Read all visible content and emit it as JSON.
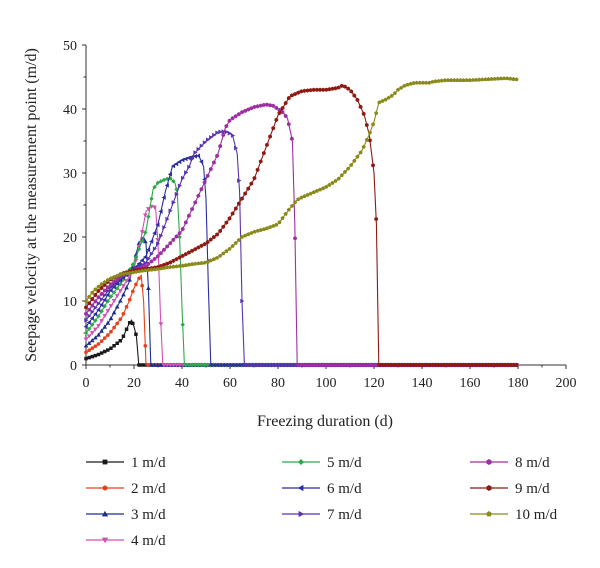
{
  "chart_data": {
    "type": "line",
    "title": "",
    "xlabel": "Freezing duration (d)",
    "ylabel": "Seepage velocity at the measurement point (m/d)",
    "xlim": [
      0,
      200
    ],
    "ylim": [
      0,
      50
    ],
    "xticks": [
      0,
      20,
      40,
      60,
      80,
      100,
      120,
      140,
      160,
      180,
      200
    ],
    "yticks": [
      0,
      10,
      20,
      30,
      40,
      50
    ],
    "grid": false,
    "legend_placement": "bottom",
    "x_end": 180,
    "series": [
      {
        "name": "1 m/d",
        "color": "#1a1a1a",
        "marker": "square",
        "points": [
          [
            0,
            1
          ],
          [
            5,
            1.6
          ],
          [
            10,
            2.5
          ],
          [
            15,
            4
          ],
          [
            18,
            6.5
          ],
          [
            19,
            7
          ],
          [
            20,
            6
          ],
          [
            21,
            4.5
          ],
          [
            22,
            0
          ],
          [
            180,
            0
          ]
        ]
      },
      {
        "name": "2 m/d",
        "color": "#e8401c",
        "marker": "circle",
        "points": [
          [
            0,
            2
          ],
          [
            5,
            3.2
          ],
          [
            10,
            5
          ],
          [
            15,
            7.5
          ],
          [
            18,
            10
          ],
          [
            20,
            12
          ],
          [
            22,
            13.5
          ],
          [
            23,
            14
          ],
          [
            24,
            10
          ],
          [
            25,
            0
          ],
          [
            180,
            0
          ]
        ]
      },
      {
        "name": "3 m/d",
        "color": "#1d2f8e",
        "marker": "triangle-up",
        "points": [
          [
            0,
            3
          ],
          [
            5,
            4.6
          ],
          [
            10,
            7
          ],
          [
            15,
            10.5
          ],
          [
            18,
            13
          ],
          [
            20,
            16
          ],
          [
            22,
            19
          ],
          [
            24,
            20
          ],
          [
            25,
            19
          ],
          [
            26,
            12
          ],
          [
            27,
            0
          ],
          [
            180,
            0
          ]
        ]
      },
      {
        "name": "4 m/d",
        "color": "#d44fb4",
        "marker": "triangle-down",
        "points": [
          [
            0,
            4
          ],
          [
            5,
            6
          ],
          [
            10,
            9
          ],
          [
            15,
            12
          ],
          [
            20,
            15
          ],
          [
            23,
            20
          ],
          [
            25,
            24
          ],
          [
            27,
            24.8
          ],
          [
            29,
            24.6
          ],
          [
            30,
            19
          ],
          [
            31,
            8
          ],
          [
            32,
            0
          ],
          [
            180,
            0
          ]
        ]
      },
      {
        "name": "5 m/d",
        "color": "#2ea84a",
        "marker": "diamond",
        "points": [
          [
            0,
            5
          ],
          [
            5,
            7.5
          ],
          [
            10,
            10.5
          ],
          [
            15,
            13
          ],
          [
            20,
            16
          ],
          [
            25,
            21
          ],
          [
            28,
            27.5
          ],
          [
            30,
            28.5
          ],
          [
            33,
            29
          ],
          [
            35,
            29.2
          ],
          [
            37,
            28.5
          ],
          [
            38,
            27
          ],
          [
            39,
            20
          ],
          [
            40,
            9
          ],
          [
            41,
            0
          ],
          [
            180,
            0
          ]
        ]
      },
      {
        "name": "6 m/d",
        "color": "#2a2f9e",
        "marker": "triangle-left",
        "points": [
          [
            0,
            6
          ],
          [
            5,
            8.5
          ],
          [
            10,
            11.5
          ],
          [
            15,
            13.5
          ],
          [
            20,
            15
          ],
          [
            25,
            17
          ],
          [
            30,
            22
          ],
          [
            33,
            27
          ],
          [
            36,
            31
          ],
          [
            40,
            32
          ],
          [
            44,
            32.5
          ],
          [
            47,
            32.7
          ],
          [
            49,
            31
          ],
          [
            50,
            26
          ],
          [
            51,
            12
          ],
          [
            52,
            0
          ],
          [
            180,
            0
          ]
        ]
      },
      {
        "name": "7 m/d",
        "color": "#5a33b0",
        "marker": "triangle-right",
        "points": [
          [
            0,
            7
          ],
          [
            5,
            9.5
          ],
          [
            10,
            12
          ],
          [
            15,
            13.8
          ],
          [
            20,
            15
          ],
          [
            25,
            16
          ],
          [
            30,
            19
          ],
          [
            35,
            24
          ],
          [
            40,
            29
          ],
          [
            43,
            31
          ],
          [
            45,
            33
          ],
          [
            50,
            35
          ],
          [
            55,
            36.4
          ],
          [
            58,
            36.5
          ],
          [
            61,
            36
          ],
          [
            63,
            33
          ],
          [
            64,
            27
          ],
          [
            65,
            10
          ],
          [
            66,
            0
          ],
          [
            180,
            0
          ]
        ]
      },
      {
        "name": "8 m/d",
        "color": "#9d2fa2",
        "marker": "hexagon",
        "points": [
          [
            0,
            8
          ],
          [
            5,
            10.5
          ],
          [
            10,
            12.5
          ],
          [
            15,
            14
          ],
          [
            20,
            14.8
          ],
          [
            25,
            15.5
          ],
          [
            30,
            17
          ],
          [
            35,
            19
          ],
          [
            40,
            21
          ],
          [
            45,
            25
          ],
          [
            50,
            29
          ],
          [
            55,
            33
          ],
          [
            58,
            37
          ],
          [
            60,
            38.3
          ],
          [
            65,
            39.5
          ],
          [
            70,
            40.3
          ],
          [
            75,
            40.7
          ],
          [
            78,
            40.5
          ],
          [
            82,
            39.5
          ],
          [
            84,
            38.5
          ],
          [
            86,
            35
          ],
          [
            87,
            22
          ],
          [
            88,
            0
          ],
          [
            180,
            0
          ]
        ]
      },
      {
        "name": "9 m/d",
        "color": "#8e1a12",
        "marker": "hexagon",
        "points": [
          [
            0,
            9
          ],
          [
            5,
            11.5
          ],
          [
            10,
            13.3
          ],
          [
            15,
            14.3
          ],
          [
            20,
            14.8
          ],
          [
            25,
            15
          ],
          [
            30,
            15.3
          ],
          [
            35,
            16
          ],
          [
            40,
            17
          ],
          [
            45,
            18
          ],
          [
            50,
            19
          ],
          [
            55,
            20.5
          ],
          [
            60,
            23
          ],
          [
            65,
            26
          ],
          [
            70,
            29
          ],
          [
            75,
            34
          ],
          [
            80,
            39
          ],
          [
            85,
            42
          ],
          [
            90,
            42.8
          ],
          [
            95,
            43
          ],
          [
            100,
            43
          ],
          [
            105,
            43.3
          ],
          [
            107,
            43.7
          ],
          [
            110,
            43
          ],
          [
            113,
            41.5
          ],
          [
            116,
            39
          ],
          [
            118,
            36
          ],
          [
            120,
            30
          ],
          [
            121,
            22
          ],
          [
            122,
            0
          ],
          [
            180,
            0
          ]
        ]
      },
      {
        "name": "10 m/d",
        "color": "#8a8a19",
        "marker": "pentagon",
        "points": [
          [
            0,
            10
          ],
          [
            3,
            11.5
          ],
          [
            6,
            12.5
          ],
          [
            10,
            13.5
          ],
          [
            15,
            14.2
          ],
          [
            20,
            14.5
          ],
          [
            25,
            14.8
          ],
          [
            30,
            15
          ],
          [
            35,
            15.3
          ],
          [
            40,
            15.5
          ],
          [
            45,
            15.8
          ],
          [
            50,
            16
          ],
          [
            55,
            16.8
          ],
          [
            60,
            18.2
          ],
          [
            65,
            20
          ],
          [
            70,
            20.8
          ],
          [
            75,
            21.3
          ],
          [
            80,
            22
          ],
          [
            85,
            24.5
          ],
          [
            88,
            25.8
          ],
          [
            90,
            26.2
          ],
          [
            95,
            27
          ],
          [
            100,
            27.8
          ],
          [
            105,
            29
          ],
          [
            110,
            31
          ],
          [
            115,
            33.5
          ],
          [
            118,
            36
          ],
          [
            120,
            38
          ],
          [
            122,
            41
          ],
          [
            125,
            41.5
          ],
          [
            128,
            42.2
          ],
          [
            130,
            43
          ],
          [
            133,
            43.7
          ],
          [
            137,
            44.1
          ],
          [
            140,
            44.1
          ],
          [
            143,
            44.1
          ],
          [
            145,
            44.3
          ],
          [
            150,
            44.5
          ],
          [
            155,
            44.5
          ],
          [
            160,
            44.5
          ],
          [
            165,
            44.6
          ],
          [
            170,
            44.7
          ],
          [
            175,
            44.8
          ],
          [
            180,
            44.6
          ]
        ]
      }
    ],
    "legend_rows": [
      [
        "1 m/d",
        "5 m/d",
        "8 m/d"
      ],
      [
        "2 m/d",
        "6 m/d",
        "9 m/d"
      ],
      [
        "3 m/d",
        "7 m/d",
        "10 m/d"
      ],
      [
        "4 m/d",
        null,
        null
      ]
    ]
  }
}
